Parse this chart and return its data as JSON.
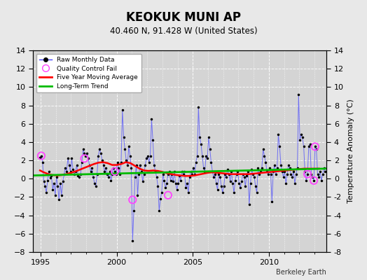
{
  "title": "KEOKUK MUNI AP",
  "subtitle": "40.460 N, 91.428 W (United States)",
  "ylabel": "Temperature Anomaly (°C)",
  "credit": "Berkeley Earth",
  "xlim": [
    1994.5,
    2013.8
  ],
  "ylim": [
    -8,
    14
  ],
  "yticks": [
    -8,
    -6,
    -4,
    -2,
    0,
    2,
    4,
    6,
    8,
    10,
    12,
    14
  ],
  "xticks": [
    1995,
    2000,
    2005,
    2010
  ],
  "fig_bg_color": "#e8e8e8",
  "plot_bg_color": "#d4d4d4",
  "raw_line_color": "#4444ff",
  "raw_dot_color": "#000000",
  "moving_avg_color": "#ff0000",
  "trend_color": "#00bb00",
  "qc_fail_color": "#ff44ff",
  "raw_monthly_data": [
    1994.958,
    2.3,
    1995.042,
    2.5,
    1995.125,
    1.8,
    1995.208,
    -0.3,
    1995.292,
    -0.8,
    1995.375,
    -1.5,
    1995.458,
    -0.2,
    1995.542,
    0.8,
    1995.625,
    0.1,
    1995.708,
    0.3,
    1995.792,
    -1.2,
    1995.875,
    -0.5,
    1995.958,
    -1.8,
    1996.042,
    0.2,
    1996.125,
    -0.8,
    1996.208,
    -2.3,
    1996.292,
    -0.5,
    1996.375,
    -1.8,
    1996.458,
    -0.3,
    1996.542,
    0.5,
    1996.625,
    1.2,
    1996.708,
    0.8,
    1996.792,
    2.2,
    1996.875,
    1.5,
    1996.958,
    0.8,
    1997.042,
    2.2,
    1997.125,
    1.0,
    1997.208,
    0.5,
    1997.292,
    0.8,
    1997.375,
    1.5,
    1997.458,
    0.3,
    1997.542,
    0.2,
    1997.625,
    0.5,
    1997.708,
    1.8,
    1997.792,
    3.2,
    1997.875,
    2.8,
    1997.958,
    2.5,
    1998.042,
    2.8,
    1998.125,
    2.2,
    1998.208,
    1.5,
    1998.292,
    0.8,
    1998.375,
    1.2,
    1998.458,
    0.2,
    1998.542,
    -0.5,
    1998.625,
    -0.8,
    1998.708,
    0.5,
    1998.792,
    2.5,
    1998.875,
    3.2,
    1998.958,
    2.8,
    1999.042,
    2.0,
    1999.125,
    1.5,
    1999.208,
    0.8,
    1999.292,
    1.2,
    1999.375,
    0.5,
    1999.458,
    0.2,
    1999.542,
    0.8,
    1999.625,
    -0.2,
    1999.708,
    0.5,
    1999.792,
    1.2,
    1999.875,
    0.8,
    1999.958,
    0.5,
    2000.042,
    1.8,
    2000.125,
    1.2,
    2000.208,
    0.5,
    2000.292,
    1.8,
    2000.375,
    7.5,
    2000.458,
    4.5,
    2000.542,
    3.2,
    2000.625,
    2.0,
    2000.708,
    1.5,
    2000.792,
    3.5,
    2000.875,
    2.5,
    2000.958,
    1.2,
    2001.042,
    -6.8,
    2001.125,
    -3.5,
    2001.208,
    0.2,
    2001.292,
    1.5,
    2001.375,
    -1.8,
    2001.458,
    0.5,
    2001.542,
    1.5,
    2001.625,
    0.8,
    2001.708,
    -0.3,
    2001.792,
    0.5,
    2001.875,
    1.5,
    2001.958,
    2.2,
    2002.042,
    2.5,
    2002.125,
    1.8,
    2002.208,
    2.5,
    2002.292,
    6.5,
    2002.375,
    4.2,
    2002.458,
    1.5,
    2002.542,
    0.8,
    2002.625,
    0.2,
    2002.708,
    -0.8,
    2002.792,
    -3.5,
    2002.875,
    -2.2,
    2002.958,
    -1.5,
    2003.042,
    0.5,
    2003.125,
    -0.2,
    2003.208,
    -1.0,
    2003.292,
    -0.5,
    2003.375,
    0.5,
    2003.458,
    0.8,
    2003.542,
    -0.2,
    2003.625,
    0.5,
    2003.708,
    -0.3,
    2003.792,
    0.8,
    2003.875,
    -0.5,
    2003.958,
    -1.2,
    2004.042,
    -0.5,
    2004.125,
    0.3,
    2004.208,
    -0.2,
    2004.292,
    0.8,
    2004.375,
    0.5,
    2004.458,
    0.8,
    2004.542,
    -1.0,
    2004.625,
    -0.5,
    2004.708,
    -1.5,
    2004.792,
    0.2,
    2004.875,
    0.8,
    2004.958,
    0.5,
    2005.042,
    1.2,
    2005.125,
    0.5,
    2005.208,
    1.8,
    2005.292,
    2.5,
    2005.375,
    7.8,
    2005.458,
    4.5,
    2005.542,
    3.8,
    2005.625,
    2.5,
    2005.708,
    1.2,
    2005.792,
    0.8,
    2005.875,
    2.5,
    2005.958,
    2.2,
    2006.042,
    4.5,
    2006.125,
    3.2,
    2006.208,
    1.8,
    2006.292,
    0.8,
    2006.375,
    0.2,
    2006.458,
    0.5,
    2006.542,
    -0.5,
    2006.625,
    -1.2,
    2006.708,
    0.5,
    2006.792,
    0.2,
    2006.875,
    -0.8,
    2006.958,
    -1.5,
    2007.042,
    -0.8,
    2007.125,
    0.5,
    2007.208,
    0.2,
    2007.292,
    1.0,
    2007.375,
    0.5,
    2007.458,
    -0.3,
    2007.542,
    0.8,
    2007.625,
    -0.5,
    2007.708,
    -1.5,
    2007.792,
    -0.2,
    2007.875,
    0.5,
    2007.958,
    0.8,
    2008.042,
    -0.5,
    2008.125,
    -1.0,
    2008.208,
    -0.3,
    2008.292,
    0.5,
    2008.375,
    0.2,
    2008.458,
    -0.8,
    2008.542,
    0.3,
    2008.625,
    0.8,
    2008.708,
    -2.8,
    2008.792,
    -0.5,
    2008.875,
    1.0,
    2008.958,
    0.5,
    2009.042,
    0.2,
    2009.125,
    -0.8,
    2009.208,
    -1.5,
    2009.292,
    1.2,
    2009.375,
    0.5,
    2009.458,
    0.8,
    2009.542,
    1.2,
    2009.625,
    3.2,
    2009.708,
    2.5,
    2009.792,
    1.8,
    2009.875,
    0.8,
    2009.958,
    0.5,
    2010.042,
    1.2,
    2010.125,
    0.5,
    2010.208,
    -2.5,
    2010.292,
    0.8,
    2010.375,
    1.5,
    2010.458,
    0.5,
    2010.542,
    1.2,
    2010.625,
    4.8,
    2010.708,
    3.5,
    2010.792,
    1.5,
    2010.875,
    0.8,
    2010.958,
    0.2,
    2011.042,
    0.8,
    2011.125,
    -0.5,
    2011.208,
    0.5,
    2011.292,
    1.5,
    2011.375,
    1.2,
    2011.458,
    0.5,
    2011.542,
    0.2,
    2011.625,
    0.8,
    2011.708,
    -0.5,
    2011.792,
    0.5,
    2011.875,
    1.2,
    2011.958,
    9.2,
    2012.042,
    4.2,
    2012.125,
    4.8,
    2012.208,
    4.5,
    2012.292,
    3.5,
    2012.375,
    0.8,
    2012.458,
    -0.2,
    2012.542,
    0.5,
    2012.625,
    3.5,
    2012.708,
    3.8,
    2012.792,
    0.5,
    2012.875,
    0.2,
    2012.958,
    -0.2,
    2013.042,
    3.5,
    2013.125,
    3.2,
    2013.208,
    0.5,
    2013.292,
    0.2,
    2013.375,
    0.8,
    2013.458,
    -0.2,
    2013.542,
    0.5,
    2013.625,
    1.2,
    2013.708,
    0.8
  ],
  "qc_fail_points": [
    [
      1995.042,
      2.5
    ],
    [
      1997.875,
      2.2
    ],
    [
      1999.875,
      0.8
    ],
    [
      2001.042,
      -2.3
    ],
    [
      2003.375,
      -1.8
    ],
    [
      2012.542,
      0.5
    ],
    [
      2012.958,
      -0.2
    ],
    [
      2013.042,
      3.5
    ]
  ],
  "moving_avg": [
    1994.958,
    0.9,
    1995.2,
    0.7,
    1995.5,
    0.5,
    1995.8,
    0.4,
    1996.1,
    0.35,
    1996.4,
    0.4,
    1996.7,
    0.5,
    1997.0,
    0.65,
    1997.3,
    0.8,
    1997.6,
    1.0,
    1997.9,
    1.2,
    1998.2,
    1.4,
    1998.5,
    1.6,
    1998.8,
    1.75,
    1999.1,
    1.8,
    1999.4,
    1.7,
    1999.7,
    1.5,
    2000.0,
    1.5,
    2000.3,
    1.6,
    2000.6,
    1.8,
    2000.9,
    1.7,
    2001.2,
    1.4,
    2001.5,
    1.1,
    2001.8,
    0.9,
    2002.1,
    0.85,
    2002.4,
    0.9,
    2002.7,
    0.85,
    2003.0,
    0.75,
    2003.3,
    0.6,
    2003.6,
    0.5,
    2003.9,
    0.4,
    2004.2,
    0.35,
    2004.5,
    0.3,
    2004.8,
    0.3,
    2005.1,
    0.35,
    2005.4,
    0.45,
    2005.7,
    0.55,
    2006.0,
    0.65,
    2006.3,
    0.7,
    2006.6,
    0.65,
    2006.9,
    0.6,
    2007.2,
    0.55,
    2007.5,
    0.5,
    2007.8,
    0.5,
    2008.1,
    0.5,
    2008.4,
    0.5,
    2008.7,
    0.5,
    2009.0,
    0.55,
    2009.3,
    0.6,
    2009.6,
    0.65,
    2009.9,
    0.7,
    2010.2,
    0.75,
    2010.5,
    0.8,
    2010.8,
    0.85,
    2011.1,
    0.9,
    2011.4,
    0.95,
    2011.7,
    1.0,
    2012.0,
    1.05,
    2012.3,
    1.1,
    2012.6,
    1.1,
    2012.9,
    1.1,
    2013.3,
    1.1
  ],
  "trend_x": [
    1994.5,
    2013.8
  ],
  "trend_y": [
    0.35,
    1.1
  ]
}
